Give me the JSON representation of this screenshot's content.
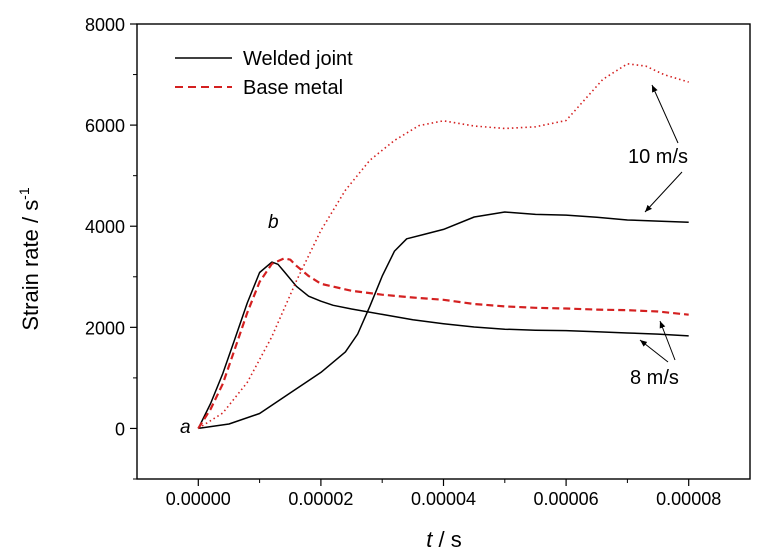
{
  "chart_data": {
    "type": "line",
    "title": "",
    "xlabel": {
      "var": "t",
      "unit": " / s"
    },
    "ylabel": {
      "base": "Strain rate / s",
      "sup": "-1"
    },
    "xlim": [
      -1e-05,
      9e-05
    ],
    "ylim": [
      -1000,
      8000
    ],
    "xticks": [
      0,
      2e-05,
      4e-05,
      6e-05,
      8e-05
    ],
    "xtick_labels": [
      "0.00000",
      "0.00002",
      "0.00004",
      "0.00006",
      "0.00008"
    ],
    "yticks": [
      0,
      2000,
      4000,
      6000,
      8000
    ],
    "ytick_labels": [
      "0",
      "2000",
      "4000",
      "6000",
      "8000"
    ],
    "grid": false,
    "legend_position": "top-left",
    "colors": {
      "welded": "#000000",
      "base": "#d42020"
    },
    "series": [
      {
        "name": "Welded joint",
        "speed": "8 m/s",
        "style": "solid",
        "color": "#000000",
        "x": [
          0,
          2e-06,
          4e-06,
          6e-06,
          8e-06,
          1e-05,
          1.2e-05,
          1.3e-05,
          1.4e-05,
          1.6e-05,
          1.8e-05,
          2e-05,
          2.2e-05,
          2.5e-05,
          3e-05,
          3.5e-05,
          4e-05,
          4.5e-05,
          5e-05,
          5.5e-05,
          6e-05,
          6.5e-05,
          7e-05,
          7.5e-05,
          8e-05
        ],
        "y": [
          0,
          500,
          1100,
          1800,
          2500,
          3100,
          3300,
          3250,
          3100,
          2800,
          2600,
          2500,
          2420,
          2350,
          2250,
          2150,
          2080,
          2020,
          1980,
          1960,
          1950,
          1920,
          1890,
          1860,
          1830
        ]
      },
      {
        "name": "Base metal",
        "speed": "8 m/s",
        "style": "dashed",
        "color": "#d42020",
        "x": [
          0,
          2e-06,
          4e-06,
          6e-06,
          8e-06,
          1e-05,
          1.2e-05,
          1.4e-05,
          1.5e-05,
          1.6e-05,
          1.8e-05,
          2e-05,
          2.5e-05,
          3e-05,
          3.5e-05,
          4e-05,
          4.5e-05,
          5e-05,
          5.5e-05,
          6e-05,
          6.5e-05,
          7e-05,
          7.5e-05,
          8e-05
        ],
        "y": [
          0,
          400,
          900,
          1600,
          2300,
          2900,
          3250,
          3350,
          3320,
          3200,
          3000,
          2850,
          2720,
          2650,
          2600,
          2560,
          2480,
          2430,
          2400,
          2380,
          2350,
          2330,
          2300,
          2250
        ]
      },
      {
        "name": "Welded joint",
        "speed": "10 m/s",
        "style": "solid",
        "color": "#000000",
        "x": [
          0,
          5e-06,
          1e-05,
          1.5e-05,
          2e-05,
          2.4e-05,
          2.6e-05,
          2.8e-05,
          3e-05,
          3.2e-05,
          3.4e-05,
          3.7e-05,
          4e-05,
          4.5e-05,
          5e-05,
          5.5e-05,
          6e-05,
          6.5e-05,
          7e-05,
          7.5e-05,
          8e-05
        ],
        "y": [
          0,
          100,
          300,
          700,
          1100,
          1500,
          1850,
          2400,
          3000,
          3500,
          3750,
          3850,
          3950,
          4200,
          4300,
          4250,
          4230,
          4180,
          4120,
          4090,
          4080
        ]
      },
      {
        "name": "Base metal",
        "speed": "10 m/s",
        "style": "dotted",
        "color": "#d42020",
        "x": [
          0,
          4e-06,
          8e-06,
          1.2e-05,
          1.6e-05,
          2e-05,
          2.4e-05,
          2.8e-05,
          3.2e-05,
          3.6e-05,
          4e-05,
          4.5e-05,
          5e-05,
          5.5e-05,
          6e-05,
          6.3e-05,
          6.6e-05,
          7e-05,
          7.3e-05,
          7.6e-05,
          8e-05
        ],
        "y": [
          0,
          300,
          900,
          1800,
          2900,
          3900,
          4700,
          5300,
          5700,
          6000,
          6100,
          6000,
          5950,
          5980,
          6100,
          6500,
          6900,
          7200,
          7150,
          6980,
          6850
        ]
      }
    ],
    "annotations": [
      {
        "text": "a",
        "italic": true
      },
      {
        "text": "b",
        "italic": true
      },
      {
        "text": "10 m/s"
      },
      {
        "text": "8 m/s"
      }
    ]
  }
}
